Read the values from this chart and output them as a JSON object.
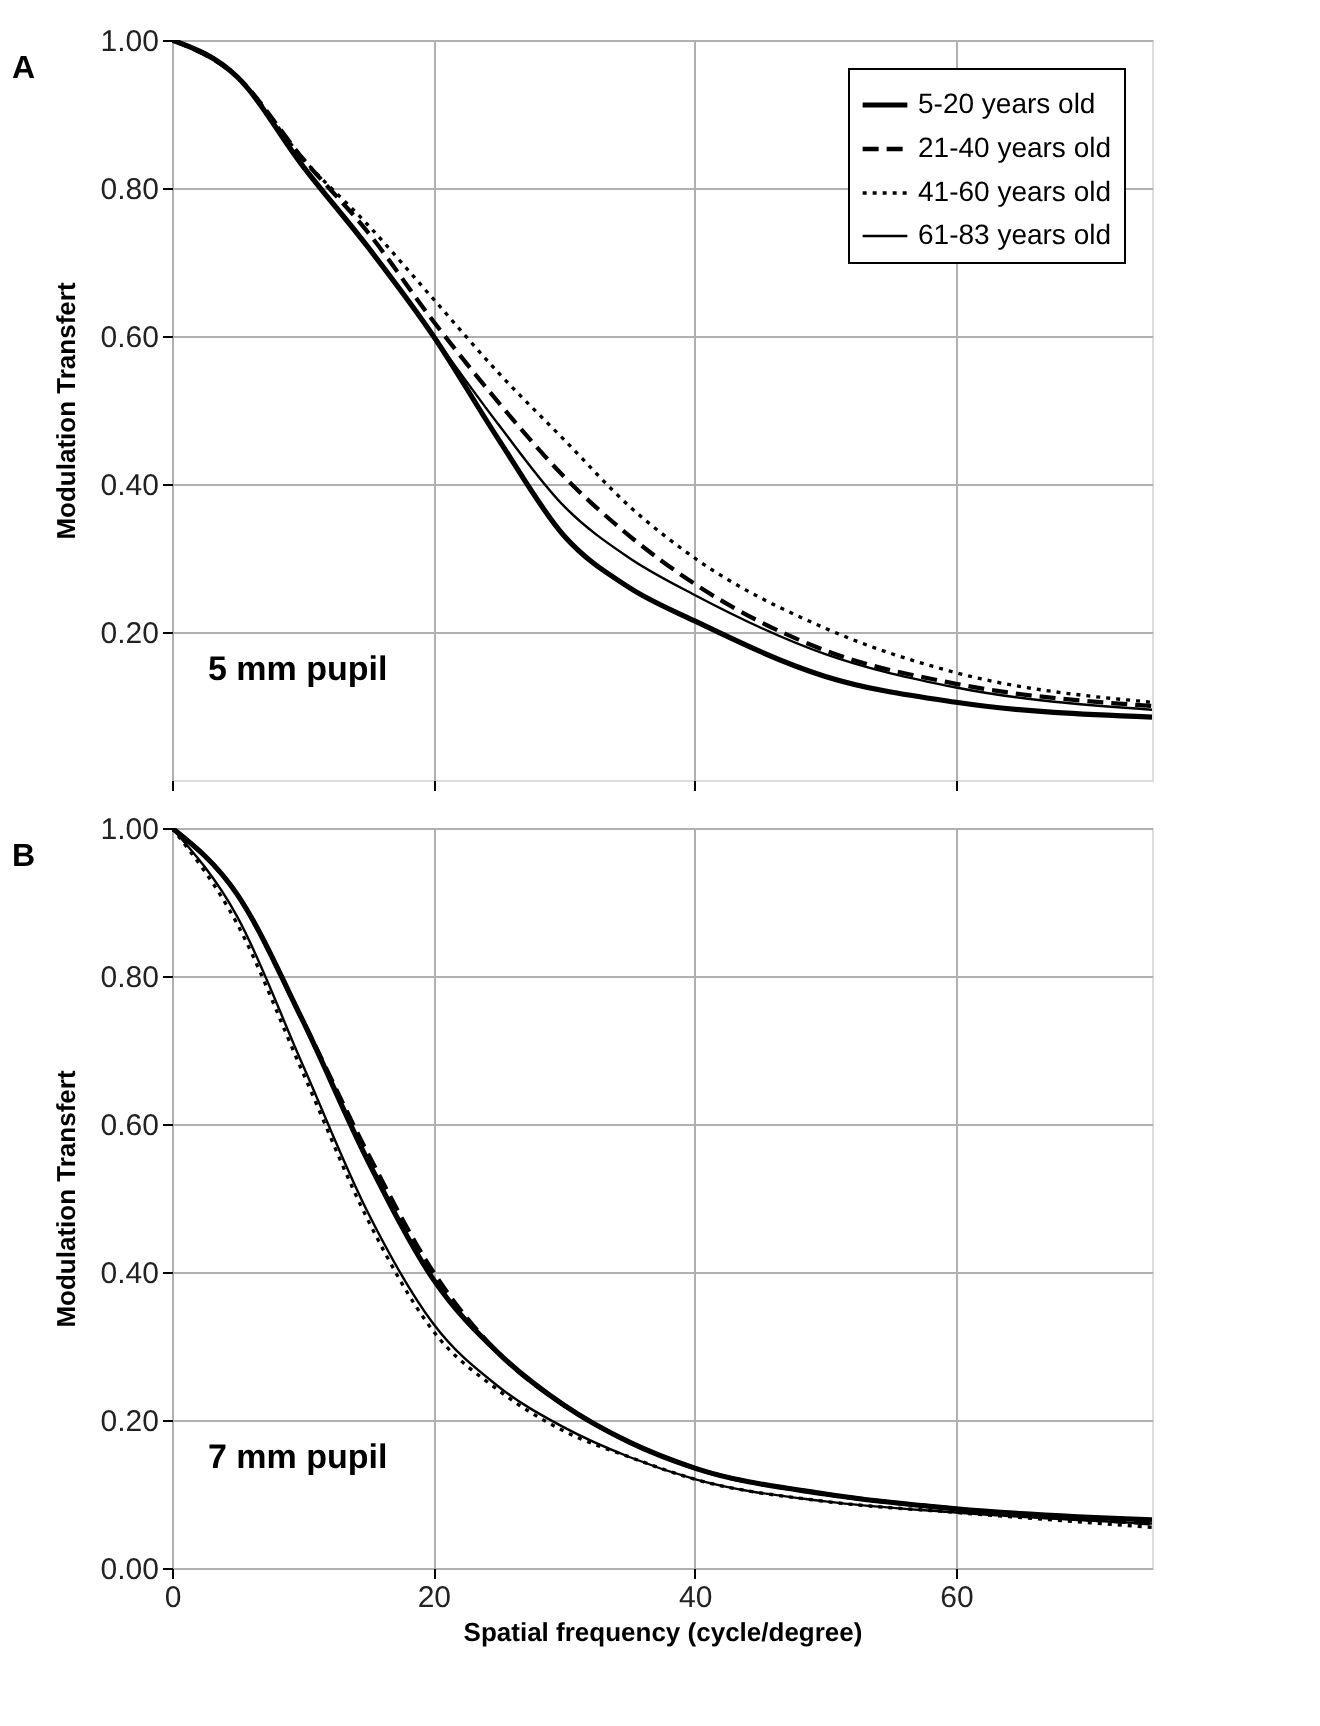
{
  "chart_data": [
    {
      "type": "line",
      "annotations": [
        "A",
        "5 mm pupil"
      ],
      "ylabel": "Modulation Transfert",
      "x": [
        0,
        5,
        10,
        15,
        20,
        25,
        30,
        35,
        40,
        50,
        60,
        75
      ],
      "series": [
        {
          "name": "5-20 years old",
          "color": "#000000",
          "line_style": "solid",
          "values": [
            1.0,
            0.95,
            0.83,
            0.72,
            0.6,
            0.46,
            0.33,
            0.26,
            0.215,
            0.14,
            0.105,
            0.085
          ]
        },
        {
          "name": "21-40 years old",
          "color": "#000000",
          "line_style": "dashed",
          "values": [
            1.0,
            0.95,
            0.84,
            0.74,
            0.62,
            0.51,
            0.41,
            0.33,
            0.265,
            0.175,
            0.13,
            0.1
          ]
        },
        {
          "name": "41-60 years old",
          "color": "#000000",
          "line_style": "dotted",
          "values": [
            1.0,
            0.95,
            0.84,
            0.75,
            0.65,
            0.55,
            0.46,
            0.37,
            0.3,
            0.205,
            0.145,
            0.105
          ]
        },
        {
          "name": "61-83 years old",
          "color": "#000000",
          "line_style": "solid",
          "values": [
            1.0,
            0.95,
            0.83,
            0.72,
            0.6,
            0.48,
            0.37,
            0.3,
            0.25,
            0.17,
            0.125,
            0.095
          ]
        }
      ],
      "xlim": [
        0,
        75
      ],
      "xticks": [
        0,
        20,
        40,
        60
      ],
      "ylim": [
        0,
        1
      ],
      "yticks": [
        {
          "value": 0.2,
          "label": "0.20"
        },
        {
          "value": 0.4,
          "label": "0.40"
        },
        {
          "value": 0.6,
          "label": "0.60"
        },
        {
          "value": 0.8,
          "label": "0.80"
        },
        {
          "value": 1.0,
          "label": "1.00"
        }
      ],
      "tick_labels": "y",
      "grid": true,
      "legend": "top right"
    },
    {
      "type": "line",
      "annotations": [
        "B",
        "7 mm pupil"
      ],
      "ylabel": "Modulation Transfert",
      "xlabel": "Spatial frequency (cycle/degree)",
      "x": [
        0,
        5,
        10,
        15,
        20,
        25,
        30,
        35,
        40,
        50,
        60,
        75
      ],
      "series": [
        {
          "name": "5-20 years old",
          "color": "#000000",
          "line_style": "solid",
          "values": [
            1.0,
            0.91,
            0.74,
            0.55,
            0.39,
            0.29,
            0.22,
            0.17,
            0.135,
            0.1,
            0.08,
            0.065
          ]
        },
        {
          "name": "21-40 years old",
          "color": "#000000",
          "line_style": "dashed",
          "values": [
            1.0,
            0.91,
            0.74,
            0.56,
            0.4,
            0.29,
            0.22,
            0.17,
            0.135,
            0.1,
            0.08,
            0.06
          ]
        },
        {
          "name": "41-60 years old",
          "color": "#000000",
          "line_style": "dotted",
          "values": [
            1.0,
            0.87,
            0.67,
            0.47,
            0.32,
            0.24,
            0.185,
            0.15,
            0.12,
            0.09,
            0.075,
            0.055
          ]
        },
        {
          "name": "61-83 years old",
          "color": "#000000",
          "line_style": "solid",
          "values": [
            1.0,
            0.88,
            0.68,
            0.48,
            0.33,
            0.245,
            0.19,
            0.15,
            0.12,
            0.09,
            0.075,
            0.06
          ]
        }
      ],
      "xlim": [
        0,
        75
      ],
      "xticks": [
        0,
        20,
        40,
        60
      ],
      "ylim": [
        0,
        1
      ],
      "yticks": [
        {
          "value": 0.0,
          "label": "0.00"
        },
        {
          "value": 0.2,
          "label": "0.20"
        },
        {
          "value": 0.4,
          "label": "0.40"
        },
        {
          "value": 0.6,
          "label": "0.60"
        },
        {
          "value": 0.8,
          "label": "0.80"
        },
        {
          "value": 1.0,
          "label": "1.00"
        }
      ],
      "grid": true,
      "legend": "top right"
    }
  ]
}
